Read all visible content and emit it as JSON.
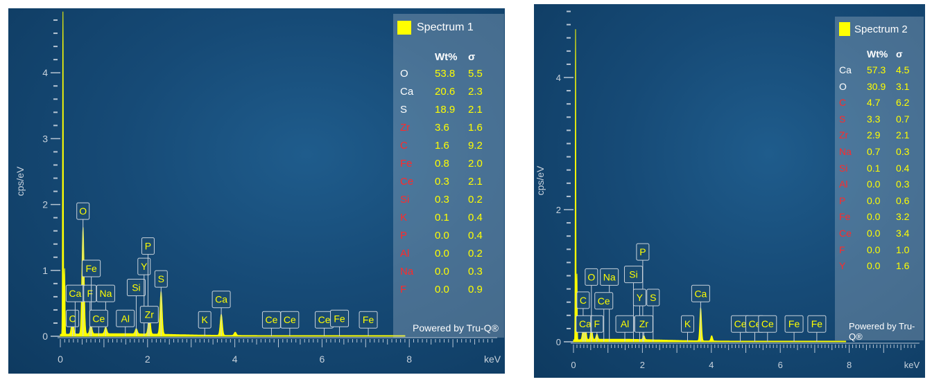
{
  "chart_data": [
    {
      "type": "line",
      "title": "",
      "xlabel": "keV",
      "ylabel": "cps/eV",
      "xlim": [
        0,
        10
      ],
      "ylim": [
        0,
        5
      ],
      "x_ticks": [
        "0",
        "2",
        "4",
        "6",
        "8"
      ],
      "y_ticks": [
        "0",
        "1",
        "2",
        "3",
        "4"
      ],
      "spectrum_peaks": [
        {
          "keV": 0.06,
          "cps": 4.9
        },
        {
          "keV": 0.1,
          "cps": 1.0
        },
        {
          "keV": 0.28,
          "cps": 0.25
        },
        {
          "keV": 0.52,
          "cps": 1.62
        },
        {
          "keV": 0.7,
          "cps": 0.15
        },
        {
          "keV": 1.04,
          "cps": 0.1
        },
        {
          "keV": 1.74,
          "cps": 0.08
        },
        {
          "keV": 2.04,
          "cps": 0.3
        },
        {
          "keV": 2.31,
          "cps": 0.65
        },
        {
          "keV": 3.69,
          "cps": 0.32
        },
        {
          "keV": 4.01,
          "cps": 0.05
        }
      ],
      "peak_labels": [
        {
          "label": "C",
          "keV": 0.28,
          "tag_cps": 0.27
        },
        {
          "label": "Ca",
          "keV": 0.34,
          "tag_cps": 0.65
        },
        {
          "label": "F",
          "keV": 0.68,
          "tag_cps": 0.65
        },
        {
          "label": "O",
          "keV": 0.52,
          "tag_cps": 1.9
        },
        {
          "label": "Fe",
          "keV": 0.71,
          "tag_cps": 1.03
        },
        {
          "label": "Na",
          "keV": 1.04,
          "tag_cps": 0.65
        },
        {
          "label": "Ce",
          "keV": 0.88,
          "tag_cps": 0.27
        },
        {
          "label": "Al",
          "keV": 1.49,
          "tag_cps": 0.27
        },
        {
          "label": "Si",
          "keV": 1.74,
          "tag_cps": 0.74
        },
        {
          "label": "Y",
          "keV": 1.92,
          "tag_cps": 1.06
        },
        {
          "label": "P",
          "keV": 2.01,
          "tag_cps": 1.37
        },
        {
          "label": "Zr",
          "keV": 2.04,
          "tag_cps": 0.33
        },
        {
          "label": "S",
          "keV": 2.31,
          "tag_cps": 0.87
        },
        {
          "label": "K",
          "keV": 3.31,
          "tag_cps": 0.25
        },
        {
          "label": "Ca",
          "keV": 3.69,
          "tag_cps": 0.56
        },
        {
          "label": "Ce",
          "keV": 4.84,
          "tag_cps": 0.25
        },
        {
          "label": "Ce",
          "keV": 5.26,
          "tag_cps": 0.25
        },
        {
          "label": "Ce",
          "keV": 6.05,
          "tag_cps": 0.25
        },
        {
          "label": "Fe",
          "keV": 6.4,
          "tag_cps": 0.27
        },
        {
          "label": "Fe",
          "keV": 7.06,
          "tag_cps": 0.25
        }
      ],
      "legend": {
        "title": "Spectrum 1",
        "col_wt": "Wt%",
        "col_sigma": "σ",
        "powered_by": "Powered by Tru-Q®",
        "rows": [
          {
            "el": "O",
            "wt": "53.8",
            "sigma": "5.5",
            "color": "#ffffff"
          },
          {
            "el": "Ca",
            "wt": "20.6",
            "sigma": "2.3",
            "color": "#ffffff"
          },
          {
            "el": "S",
            "wt": "18.9",
            "sigma": "2.1",
            "color": "#ffffff"
          },
          {
            "el": "Zr",
            "wt": "3.6",
            "sigma": "1.6",
            "color": "#ff2a2a"
          },
          {
            "el": "C",
            "wt": "1.6",
            "sigma": "9.2",
            "color": "#ff2a2a"
          },
          {
            "el": "Fe",
            "wt": "0.8",
            "sigma": "2.0",
            "color": "#ff2a2a"
          },
          {
            "el": "Ce",
            "wt": "0.3",
            "sigma": "2.1",
            "color": "#ff2a2a"
          },
          {
            "el": "Si",
            "wt": "0.3",
            "sigma": "0.2",
            "color": "#ff2a2a"
          },
          {
            "el": "K",
            "wt": "0.1",
            "sigma": "0.4",
            "color": "#ff2a2a"
          },
          {
            "el": "P",
            "wt": "0.0",
            "sigma": "0.4",
            "color": "#ff2a2a"
          },
          {
            "el": "Al",
            "wt": "0.0",
            "sigma": "0.2",
            "color": "#ff2a2a"
          },
          {
            "el": "Na",
            "wt": "0.0",
            "sigma": "0.3",
            "color": "#ff2a2a"
          },
          {
            "el": "F",
            "wt": "0.0",
            "sigma": "0.9",
            "color": "#ff2a2a"
          }
        ]
      }
    },
    {
      "type": "line",
      "title": "",
      "xlabel": "keV",
      "ylabel": "cps/eV",
      "xlim": [
        0,
        10
      ],
      "ylim": [
        0,
        5
      ],
      "x_ticks": [
        "0",
        "2",
        "4",
        "6",
        "8"
      ],
      "y_ticks": [
        "0",
        "2",
        "4"
      ],
      "spectrum_peaks": [
        {
          "keV": 0.06,
          "cps": 4.7
        },
        {
          "keV": 0.1,
          "cps": 1.0
        },
        {
          "keV": 0.28,
          "cps": 0.15
        },
        {
          "keV": 0.34,
          "cps": 0.3
        },
        {
          "keV": 0.52,
          "cps": 0.2
        },
        {
          "keV": 0.68,
          "cps": 0.08
        },
        {
          "keV": 2.04,
          "cps": 0.06
        },
        {
          "keV": 3.69,
          "cps": 0.5
        },
        {
          "keV": 4.01,
          "cps": 0.08
        }
      ],
      "peak_labels": [
        {
          "label": "C",
          "keV": 0.28,
          "tag_cps": 0.63
        },
        {
          "label": "Ca",
          "keV": 0.34,
          "tag_cps": 0.27
        },
        {
          "label": "F",
          "keV": 0.68,
          "tag_cps": 0.27
        },
        {
          "label": "O",
          "keV": 0.52,
          "tag_cps": 0.98
        },
        {
          "label": "Na",
          "keV": 1.04,
          "tag_cps": 0.98
        },
        {
          "label": "Ce",
          "keV": 0.88,
          "tag_cps": 0.62
        },
        {
          "label": "Al",
          "keV": 1.49,
          "tag_cps": 0.27
        },
        {
          "label": "Si",
          "keV": 1.74,
          "tag_cps": 1.02
        },
        {
          "label": "P",
          "keV": 2.01,
          "tag_cps": 1.36
        },
        {
          "label": "Y",
          "keV": 1.92,
          "tag_cps": 0.67
        },
        {
          "label": "Zr",
          "keV": 2.04,
          "tag_cps": 0.27
        },
        {
          "label": "S",
          "keV": 2.31,
          "tag_cps": 0.67
        },
        {
          "label": "K",
          "keV": 3.31,
          "tag_cps": 0.27
        },
        {
          "label": "Ca",
          "keV": 3.69,
          "tag_cps": 0.73
        },
        {
          "label": "Ce",
          "keV": 4.84,
          "tag_cps": 0.27
        },
        {
          "label": "Ce",
          "keV": 5.26,
          "tag_cps": 0.27
        },
        {
          "label": "Ce",
          "keV": 5.63,
          "tag_cps": 0.27
        },
        {
          "label": "Fe",
          "keV": 6.4,
          "tag_cps": 0.27
        },
        {
          "label": "Fe",
          "keV": 7.06,
          "tag_cps": 0.27
        }
      ],
      "legend": {
        "title": "Spectrum 2",
        "col_wt": "Wt%",
        "col_sigma": "σ",
        "powered_by": "Powered by Tru-Q®",
        "rows": [
          {
            "el": "Ca",
            "wt": "57.3",
            "sigma": "4.5",
            "color": "#ffffff"
          },
          {
            "el": "O",
            "wt": "30.9",
            "sigma": "3.1",
            "color": "#ffffff"
          },
          {
            "el": "C",
            "wt": "4.7",
            "sigma": "6.2",
            "color": "#ff2a2a"
          },
          {
            "el": "S",
            "wt": "3.3",
            "sigma": "0.7",
            "color": "#ff2a2a"
          },
          {
            "el": "Zr",
            "wt": "2.9",
            "sigma": "2.1",
            "color": "#ff2a2a"
          },
          {
            "el": "Na",
            "wt": "0.7",
            "sigma": "0.3",
            "color": "#ff2a2a"
          },
          {
            "el": "Si",
            "wt": "0.1",
            "sigma": "0.4",
            "color": "#ff2a2a"
          },
          {
            "el": "Al",
            "wt": "0.0",
            "sigma": "0.3",
            "color": "#ff2a2a"
          },
          {
            "el": "P",
            "wt": "0.0",
            "sigma": "0.6",
            "color": "#ff2a2a"
          },
          {
            "el": "Fe",
            "wt": "0.0",
            "sigma": "3.2",
            "color": "#ff2a2a"
          },
          {
            "el": "Ce",
            "wt": "0.0",
            "sigma": "3.4",
            "color": "#ff2a2a"
          },
          {
            "el": "F",
            "wt": "0.0",
            "sigma": "1.0",
            "color": "#ff2a2a"
          },
          {
            "el": "Y",
            "wt": "0.0",
            "sigma": "1.6",
            "color": "#ff2a2a"
          }
        ]
      }
    }
  ]
}
